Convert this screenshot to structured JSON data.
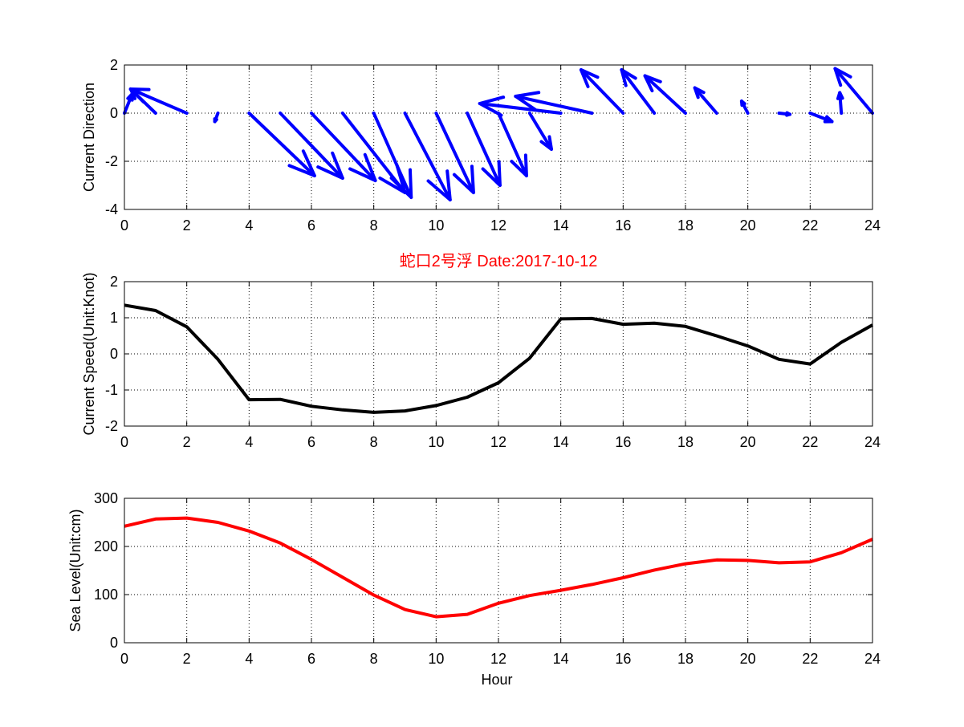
{
  "figure_title": "蛇口2号浮   Date:2017-10-12",
  "colors": {
    "arrows": "#0000ff",
    "speed": "#000000",
    "sea": "#ff0000",
    "title": "#ff0000",
    "axis": "#000000",
    "grid": "#000000"
  },
  "chart_data": [
    {
      "type": "quiver",
      "ylabel": "Current Direction",
      "xlim": [
        0,
        24
      ],
      "ylim": [
        -4,
        2
      ],
      "xticks": [
        "0",
        "2",
        "4",
        "6",
        "8",
        "10",
        "12",
        "14",
        "16",
        "18",
        "20",
        "22",
        "24"
      ],
      "yticks": [
        "-4",
        "-2",
        "0",
        "2"
      ],
      "grid": true,
      "arrows": [
        {
          "x": 0,
          "u": 0.25,
          "v": 0.8
        },
        {
          "x": 1,
          "u": -0.8,
          "v": 1.0
        },
        {
          "x": 2,
          "u": -1.8,
          "v": 1.0
        },
        {
          "x": 3,
          "u": -0.1,
          "v": -0.35
        },
        {
          "x": 4,
          "u": 2.1,
          "v": -2.6
        },
        {
          "x": 5,
          "u": 2.0,
          "v": -2.7
        },
        {
          "x": 6,
          "u": 2.05,
          "v": -2.8
        },
        {
          "x": 7,
          "u": 2.0,
          "v": -3.3
        },
        {
          "x": 8,
          "u": 1.2,
          "v": -3.5
        },
        {
          "x": 9,
          "u": 1.45,
          "v": -3.6
        },
        {
          "x": 10,
          "u": 1.2,
          "v": -3.3
        },
        {
          "x": 11,
          "u": 1.05,
          "v": -3.0
        },
        {
          "x": 12,
          "u": 0.9,
          "v": -2.6
        },
        {
          "x": 13,
          "u": 0.7,
          "v": -1.5
        },
        {
          "x": 14,
          "u": -2.6,
          "v": 0.4
        },
        {
          "x": 15,
          "u": -2.45,
          "v": 0.7
        },
        {
          "x": 16,
          "u": -1.35,
          "v": 1.8
        },
        {
          "x": 17,
          "u": -1.05,
          "v": 1.8
        },
        {
          "x": 18,
          "u": -1.3,
          "v": 1.55
        },
        {
          "x": 19,
          "u": -0.7,
          "v": 1.05
        },
        {
          "x": 20,
          "u": -0.2,
          "v": 0.5
        },
        {
          "x": 21,
          "u": 0.35,
          "v": -0.05
        },
        {
          "x": 22,
          "u": 0.7,
          "v": -0.35
        },
        {
          "x": 23,
          "u": -0.05,
          "v": 0.85
        },
        {
          "x": 24,
          "u": -1.2,
          "v": 1.85
        }
      ]
    },
    {
      "type": "line",
      "ylabel": "Current Speed(Unit:Knot)",
      "xlim": [
        0,
        24
      ],
      "ylim": [
        -2,
        2
      ],
      "xticks": [
        "0",
        "2",
        "4",
        "6",
        "8",
        "10",
        "12",
        "14",
        "16",
        "18",
        "20",
        "22",
        "24"
      ],
      "yticks": [
        "-2",
        "-1",
        "0",
        "1",
        "2"
      ],
      "grid": true,
      "x": [
        0,
        1,
        2,
        3,
        4,
        5,
        6,
        7,
        8,
        9,
        10,
        11,
        12,
        13,
        14,
        15,
        16,
        17,
        18,
        19,
        20,
        21,
        22,
        23,
        24
      ],
      "y": [
        1.35,
        1.2,
        0.75,
        -0.15,
        -1.27,
        -1.26,
        -1.45,
        -1.55,
        -1.62,
        -1.58,
        -1.43,
        -1.2,
        -0.8,
        -0.12,
        0.97,
        0.98,
        0.82,
        0.85,
        0.76,
        0.5,
        0.22,
        -0.15,
        -0.28,
        0.32,
        0.8
      ]
    },
    {
      "type": "line",
      "ylabel": "Sea Level(Unit:cm)",
      "xlabel": "Hour",
      "xlim": [
        0,
        24
      ],
      "ylim": [
        0,
        300
      ],
      "xticks": [
        "0",
        "2",
        "4",
        "6",
        "8",
        "10",
        "12",
        "14",
        "16",
        "18",
        "20",
        "22",
        "24"
      ],
      "yticks": [
        "0",
        "100",
        "200",
        "300"
      ],
      "grid": true,
      "x": [
        0,
        1,
        2,
        3,
        4,
        5,
        6,
        7,
        8,
        9,
        10,
        11,
        12,
        13,
        14,
        15,
        16,
        17,
        18,
        19,
        20,
        21,
        22,
        23,
        24
      ],
      "y": [
        242,
        257,
        259,
        250,
        232,
        207,
        173,
        136,
        99,
        69,
        54,
        59,
        82,
        98,
        109,
        121,
        135,
        151,
        164,
        172,
        171,
        166,
        168,
        187,
        215
      ]
    }
  ]
}
